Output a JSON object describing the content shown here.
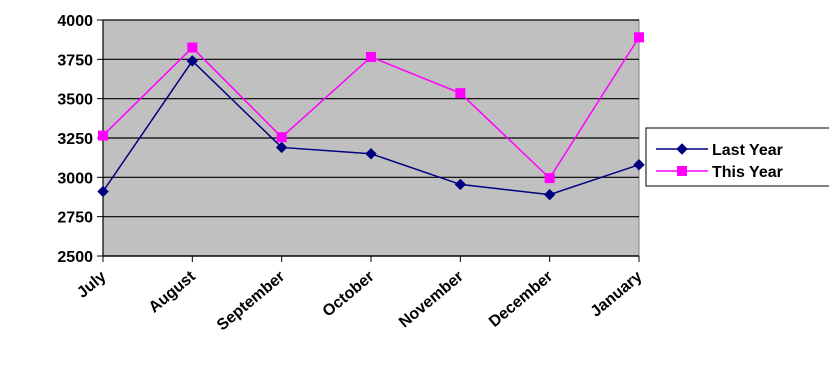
{
  "chart_data": {
    "type": "line",
    "title": "",
    "xlabel": "",
    "ylabel": "",
    "categories": [
      "July",
      "August",
      "September",
      "October",
      "November",
      "December",
      "January"
    ],
    "ylim": [
      2500,
      4000
    ],
    "yticks": [
      2500,
      2750,
      3000,
      3250,
      3500,
      3750,
      4000
    ],
    "grid": "horizontal",
    "legend_position": "right",
    "plot_background": "#c0c0c0",
    "series": [
      {
        "name": "Last Year",
        "color": "#000080",
        "marker": "diamond",
        "values": [
          2910,
          3740,
          3190,
          3150,
          2955,
          2890,
          3080
        ]
      },
      {
        "name": "This Year",
        "color": "#ff00ff",
        "marker": "square",
        "values": [
          3265,
          3825,
          3255,
          3765,
          3535,
          2995,
          3890
        ]
      }
    ]
  }
}
